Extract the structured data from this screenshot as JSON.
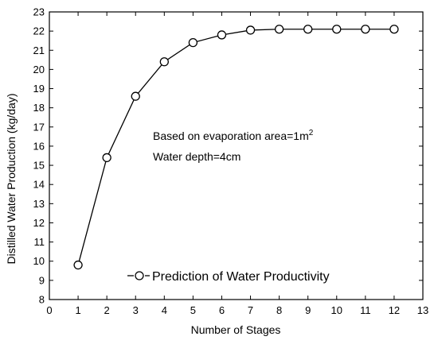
{
  "chart_data": {
    "type": "line",
    "x": [
      1,
      2,
      3,
      4,
      5,
      6,
      7,
      8,
      9,
      10,
      11,
      12
    ],
    "series": [
      {
        "name": "Prediction of Water Productivity",
        "values": [
          9.8,
          15.4,
          18.6,
          20.4,
          21.4,
          21.8,
          22.05,
          22.1,
          22.1,
          22.1,
          22.1,
          22.1
        ]
      }
    ],
    "xlabel": "Number of Stages",
    "ylabel": "Distilled Water Production  (kg/day)",
    "xlim": [
      0,
      13
    ],
    "ylim": [
      8,
      23
    ],
    "xticks": [
      "0",
      "1",
      "2",
      "3",
      "4",
      "5",
      "6",
      "7",
      "8",
      "9",
      "10",
      "11",
      "12",
      "13"
    ],
    "yticks": [
      "8",
      "9",
      "10",
      "11",
      "12",
      "13",
      "14",
      "15",
      "16",
      "17",
      "18",
      "19",
      "20",
      "21",
      "22",
      "23"
    ],
    "annotations": {
      "line1_main": "Based on evaporation area=1m",
      "line1_superscript": "2",
      "line2": "Water depth=4cm"
    },
    "legend": {
      "position": "bottom",
      "marker": "open-circle"
    },
    "grid": false,
    "colors": {
      "line": "#000000",
      "marker_fill": "#ffffff",
      "frame": "#000000"
    }
  }
}
